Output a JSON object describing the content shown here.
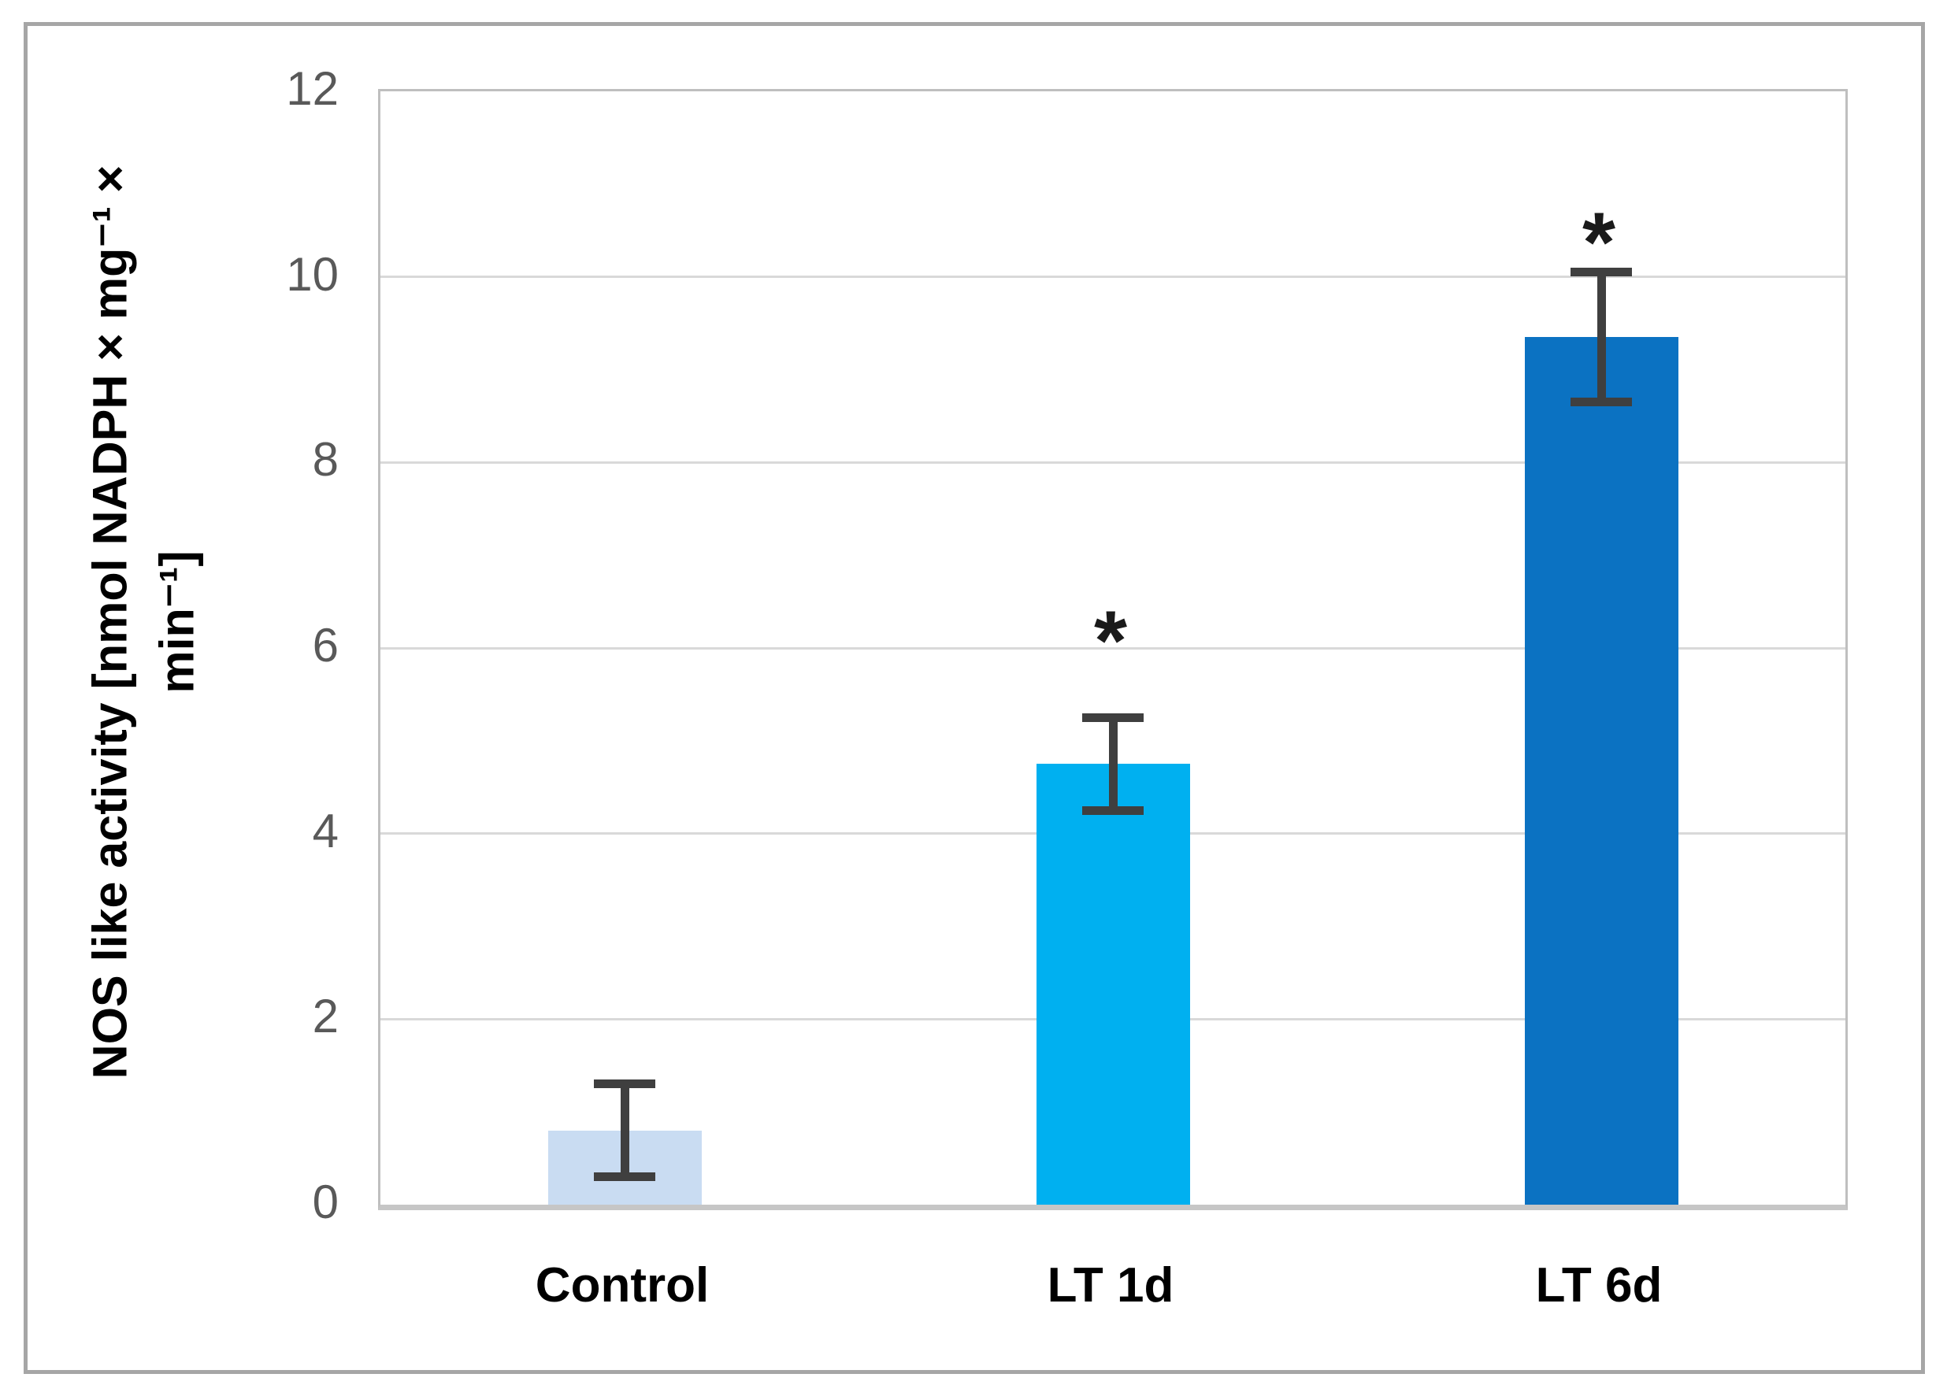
{
  "figure": {
    "background": "#ffffff",
    "border_color": "#a6a6a6"
  },
  "chart_data": {
    "type": "bar",
    "title": "",
    "categories": [
      "Control",
      "LT 1d",
      "LT 6d"
    ],
    "values": [
      0.8,
      4.75,
      9.35
    ],
    "error_bars": [
      0.5,
      0.5,
      0.7
    ],
    "bar_colors": [
      "#C9DCF2",
      "#00B0F0",
      "#0B72C2"
    ],
    "significance": [
      null,
      "*",
      "*"
    ],
    "significance_y": [
      null,
      6.2,
      10.5
    ],
    "ylabel": "NOS like activity [nmol NADPH × mg⁻¹ ×\nmin⁻¹]",
    "xlabel": "",
    "ylim": [
      0,
      12
    ],
    "yticks": [
      0,
      2,
      4,
      6,
      8,
      10,
      12
    ],
    "grid": "horizontal",
    "legend": "none",
    "grid_color": "#d9d9d9",
    "axis_color": "#bfbfbf",
    "baseline_color": "#c6c6c6",
    "error_color": "#3f3f3f",
    "tick_label_color": "#595959"
  }
}
